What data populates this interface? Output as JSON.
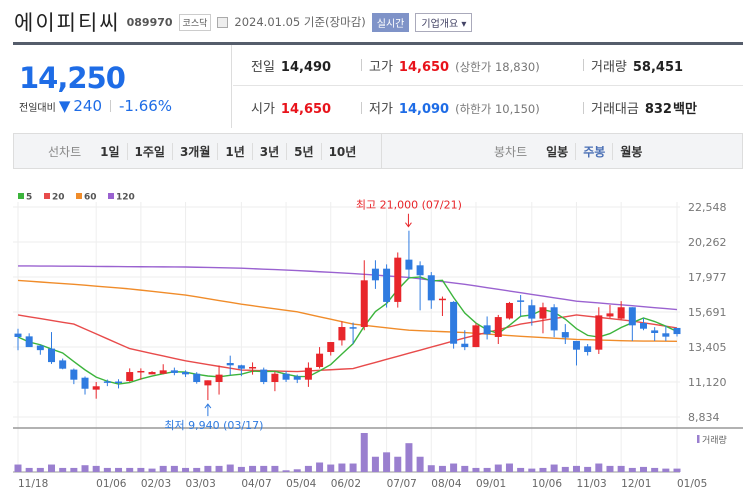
{
  "header": {
    "name": "에이피티씨",
    "code": "089970",
    "market": "코스닥",
    "date": "2024.01.05 기준(장마감)",
    "realtime_label": "실시간",
    "company_label": "기업개요 ▾"
  },
  "price": {
    "current": "14,250",
    "change_label": "전일대비",
    "change_arrow": "▼",
    "change": "240",
    "change_pct": "-1.66%"
  },
  "stats": {
    "prev_label": "전일",
    "prev": "14,490",
    "high_label": "고가",
    "high": "14,650",
    "upper_limit": "(상한가 18,830)",
    "volume_label": "거래량",
    "volume": "58,451",
    "open_label": "시가",
    "open": "14,650",
    "low_label": "저가",
    "low": "14,090",
    "lower_limit": "(하한가 10,150)",
    "amount_label": "거래대금",
    "amount": "832",
    "amount_unit": "백만"
  },
  "toolbar": {
    "line_label": "선차트",
    "line_items": [
      "1일",
      "1주일",
      "3개월",
      "1년",
      "3년",
      "5년",
      "10년"
    ],
    "candle_label": "봉차트",
    "candle_items": [
      "일봉",
      "주봉",
      "월봉"
    ],
    "candle_selected": 1
  },
  "chart_data": {
    "type": "candlestick",
    "period": "weekly",
    "legend": [
      {
        "name": "5",
        "color": "#3cb43c"
      },
      {
        "name": "20",
        "color": "#e84b4b"
      },
      {
        "name": "60",
        "color": "#f08c2a"
      },
      {
        "name": "120",
        "color": "#9a62d0"
      }
    ],
    "y_ticks": [
      "22,548",
      "20,262",
      "17,977",
      "15,691",
      "13,405",
      "11,120",
      "8,834"
    ],
    "y_tick_values": [
      22548,
      20262,
      17977,
      15691,
      13405,
      11120,
      8834
    ],
    "ylim": [
      8834,
      22548
    ],
    "x_labels": [
      {
        "i": 0,
        "t": "11/18"
      },
      {
        "i": 7,
        "t": "01/06"
      },
      {
        "i": 11,
        "t": "02/03"
      },
      {
        "i": 15,
        "t": "03/03"
      },
      {
        "i": 20,
        "t": "04/07"
      },
      {
        "i": 24,
        "t": "05/04"
      },
      {
        "i": 28,
        "t": "06/02"
      },
      {
        "i": 33,
        "t": "07/07"
      },
      {
        "i": 37,
        "t": "08/04"
      },
      {
        "i": 41,
        "t": "09/01"
      },
      {
        "i": 46,
        "t": "10/06"
      },
      {
        "i": 50,
        "t": "11/03"
      },
      {
        "i": 54,
        "t": "12/01"
      },
      {
        "i": 59,
        "t": "01/05"
      }
    ],
    "ohlc": [
      [
        14280,
        14600,
        13190,
        14060
      ],
      [
        14100,
        14300,
        13450,
        13400
      ],
      [
        13500,
        13550,
        12900,
        13200
      ],
      [
        13300,
        14380,
        12300,
        12420
      ],
      [
        12530,
        12650,
        11950,
        11990
      ],
      [
        11930,
        12000,
        10980,
        11270
      ],
      [
        11400,
        11480,
        10300,
        10680
      ],
      [
        10620,
        11120,
        10030,
        10840
      ],
      [
        11160,
        11280,
        10850,
        11070
      ],
      [
        11150,
        11300,
        10700,
        11070
      ],
      [
        11180,
        12010,
        11130,
        11770
      ],
      [
        11770,
        12010,
        11270,
        11840
      ],
      [
        11620,
        11830,
        11620,
        11770
      ],
      [
        11660,
        12280,
        11620,
        11880
      ],
      [
        11880,
        12060,
        11560,
        11710
      ],
      [
        11770,
        11880,
        11450,
        11620
      ],
      [
        11660,
        11760,
        11010,
        11120
      ],
      [
        10900,
        11230,
        9940,
        11230
      ],
      [
        11120,
        12200,
        10300,
        11600
      ],
      [
        12360,
        12840,
        11560,
        12210
      ],
      [
        12210,
        12250,
        11500,
        11990
      ],
      [
        12000,
        12400,
        11600,
        12100
      ],
      [
        11930,
        12060,
        10980,
        11120
      ],
      [
        11120,
        11800,
        10520,
        11660
      ],
      [
        11660,
        11830,
        11120,
        11270
      ],
      [
        11490,
        11600,
        11050,
        11270
      ],
      [
        11270,
        12400,
        10800,
        12050
      ],
      [
        12100,
        13400,
        12000,
        12970
      ],
      [
        13080,
        13730,
        12850,
        13730
      ],
      [
        13840,
        15080,
        13500,
        14710
      ],
      [
        14700,
        15000,
        13600,
        14650
      ],
      [
        14710,
        19070,
        14500,
        17760
      ],
      [
        18520,
        19070,
        17200,
        17760
      ],
      [
        18520,
        18800,
        15980,
        16350
      ],
      [
        16350,
        19580,
        15980,
        19240
      ],
      [
        19110,
        21000,
        17870,
        18460
      ],
      [
        18740,
        19000,
        15800,
        18090
      ],
      [
        18090,
        18300,
        15900,
        16450
      ],
      [
        16500,
        16700,
        15430,
        16560
      ],
      [
        16350,
        16400,
        13300,
        13620
      ],
      [
        13620,
        14500,
        13200,
        13400
      ],
      [
        13400,
        14950,
        13400,
        14820
      ],
      [
        14820,
        15400,
        13900,
        14240
      ],
      [
        14060,
        15500,
        13600,
        15360
      ],
      [
        15270,
        16350,
        15200,
        16280
      ],
      [
        16450,
        16800,
        15400,
        16350
      ],
      [
        16130,
        16500,
        14800,
        15260
      ],
      [
        15260,
        16300,
        14300,
        16000
      ],
      [
        16000,
        16200,
        14050,
        14490
      ],
      [
        14380,
        14900,
        13600,
        14020
      ],
      [
        13800,
        13800,
        12200,
        13230
      ],
      [
        13450,
        13600,
        12850,
        13080
      ],
      [
        13230,
        16000,
        12950,
        15470
      ],
      [
        15400,
        16150,
        15300,
        15600
      ],
      [
        15260,
        16400,
        15200,
        16000
      ],
      [
        16000,
        16000,
        13800,
        14820
      ],
      [
        14970,
        15300,
        14500,
        14600
      ],
      [
        14490,
        14700,
        13800,
        14320
      ],
      [
        14300,
        14800,
        13800,
        14080
      ],
      [
        14650,
        14650,
        14090,
        14250
      ]
    ],
    "ma_anchor_index": [
      0,
      5,
      10,
      15,
      20,
      25,
      30,
      35,
      40,
      45,
      50,
      55,
      59
    ],
    "ma20": [
      15500,
      14900,
      13300,
      12500,
      11900,
      11800,
      12000,
      13000,
      14000,
      14900,
      15500,
      15100,
      14650
    ],
    "ma60": [
      17750,
      17500,
      17200,
      16800,
      16200,
      15700,
      14900,
      14500,
      14350,
      14100,
      13900,
      13800,
      13780
    ],
    "ma120": [
      18700,
      18680,
      18650,
      18630,
      18550,
      18400,
      18200,
      17950,
      17500,
      16950,
      16400,
      16100,
      15850
    ],
    "volume": [
      22,
      12,
      12,
      22,
      12,
      12,
      20,
      18,
      12,
      12,
      12,
      12,
      10,
      18,
      18,
      12,
      12,
      18,
      18,
      22,
      15,
      18,
      18,
      18,
      5,
      8,
      18,
      28,
      22,
      25,
      25,
      115,
      45,
      58,
      45,
      85,
      45,
      20,
      18,
      25,
      18,
      12,
      12,
      22,
      25,
      12,
      10,
      12,
      22,
      15,
      18,
      15,
      25,
      18,
      18,
      12,
      15,
      12,
      10,
      10
    ],
    "volume_label": "거래량",
    "annotations": {
      "high": "최고 21,000 (07/21)",
      "high_index": 35,
      "high_value": 21000,
      "low": "최저 9,940 (03/17)",
      "low_index": 17,
      "low_value": 9940
    }
  }
}
